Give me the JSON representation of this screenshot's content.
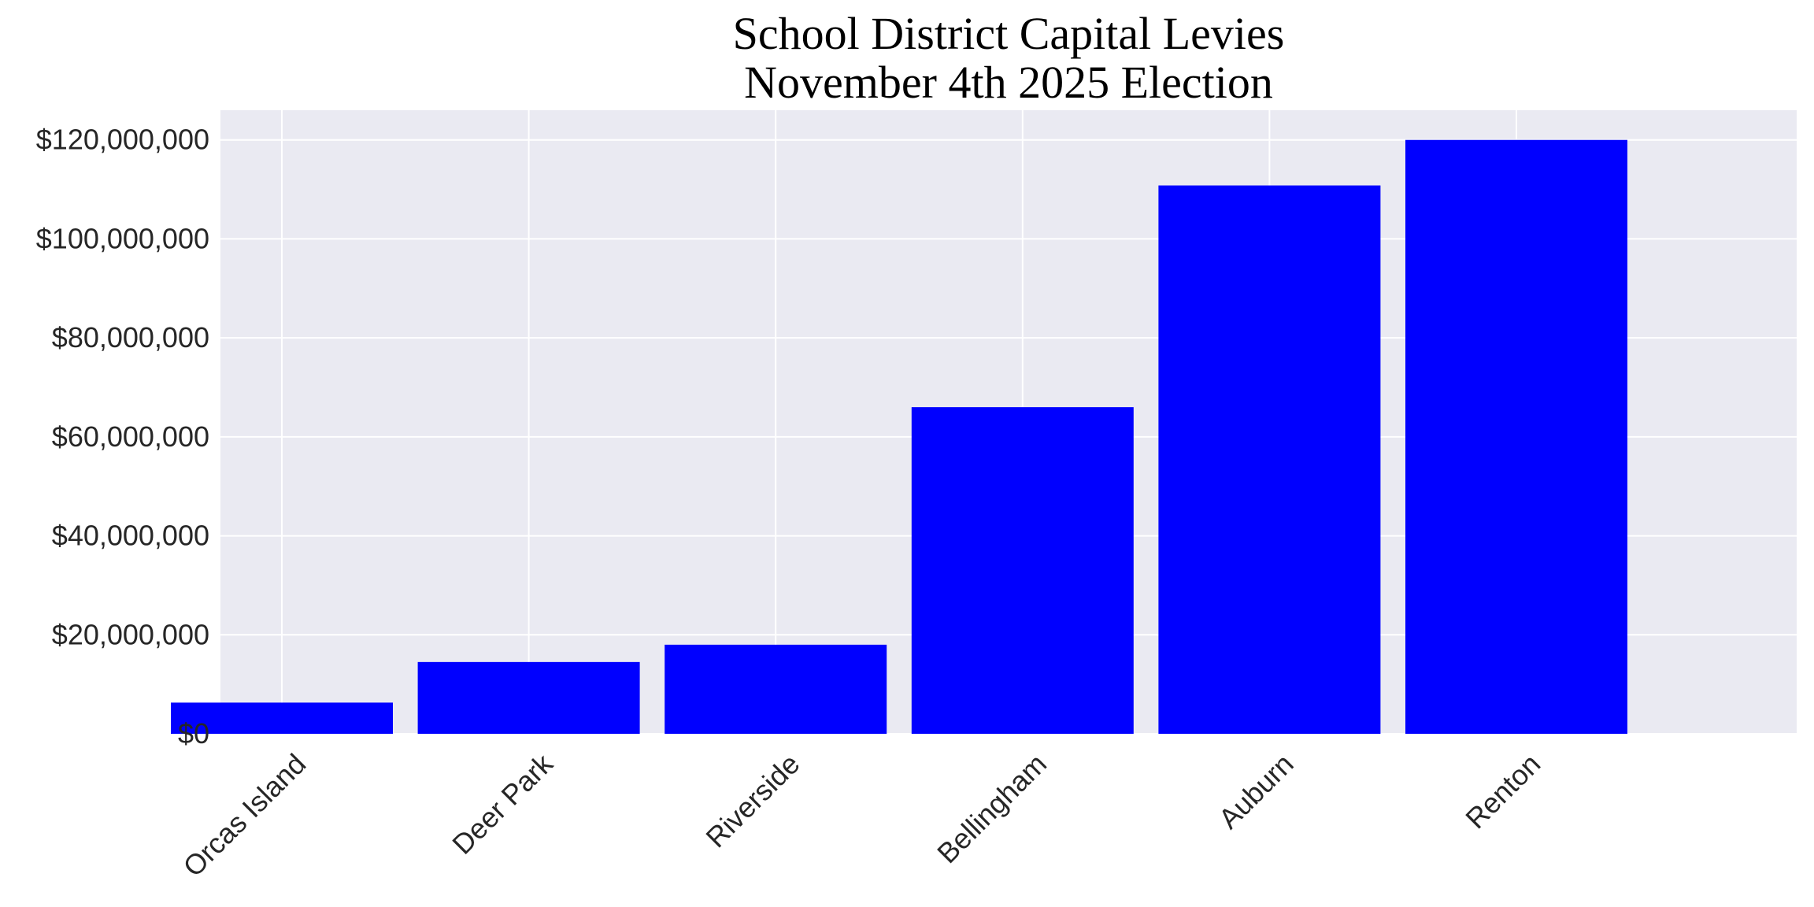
{
  "chart_data": {
    "type": "bar",
    "title": "School District Capital Levies",
    "subtitle": "November 4th 2025 Election",
    "xlabel": "",
    "ylabel": "",
    "categories": [
      "Orcas Island",
      "Deer Park",
      "Riverside",
      "Bellingham",
      "Auburn",
      "Renton"
    ],
    "values": [
      6300000,
      14500000,
      18000000,
      66000000,
      110800000,
      120000000
    ],
    "y_ticks": [
      0,
      20000000,
      40000000,
      60000000,
      80000000,
      100000000,
      120000000
    ],
    "y_tick_labels": [
      "$0",
      "$20,000,000",
      "$40,000,000",
      "$60,000,000",
      "$80,000,000",
      "$100,000,000",
      "$120,000,000"
    ],
    "ylim": [
      0,
      126000000
    ],
    "grid": true,
    "bar_color": "#0000ff",
    "plot_background": "#eaeaf2",
    "grid_color": "#ffffff"
  }
}
